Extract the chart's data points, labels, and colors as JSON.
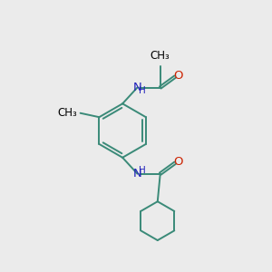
{
  "bg_color": "#ebebeb",
  "bond_color": "#3a8a78",
  "N_color": "#2020bb",
  "O_color": "#cc2200",
  "line_width": 1.4,
  "font_size": 8.5,
  "fig_size": [
    3.0,
    3.0
  ],
  "dpi": 100,
  "xlim": [
    0,
    10
  ],
  "ylim": [
    0,
    10
  ]
}
